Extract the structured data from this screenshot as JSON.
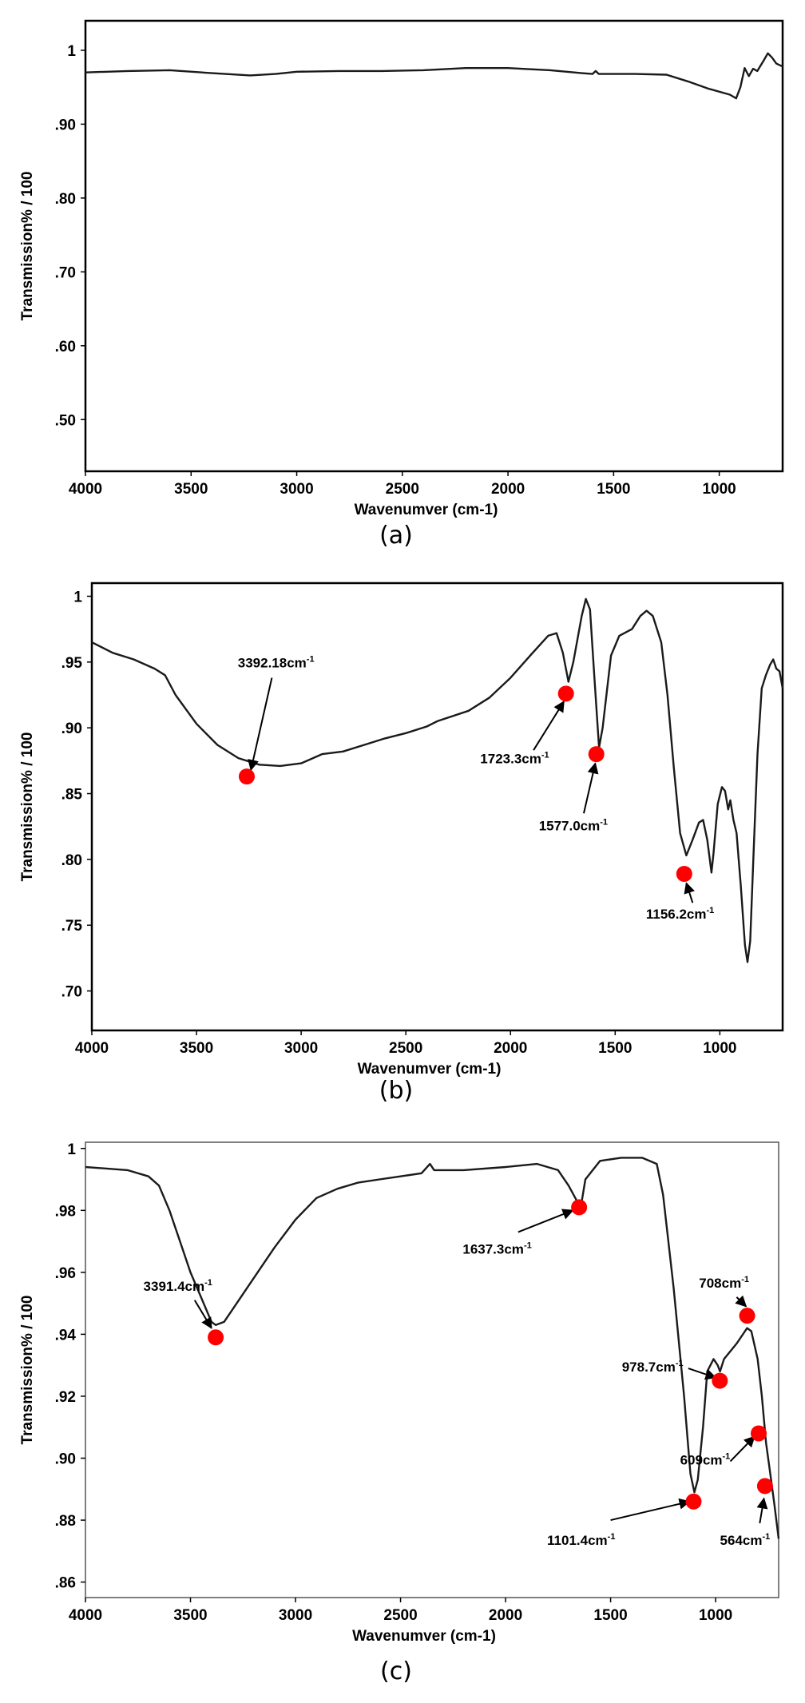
{
  "chart_data": [
    {
      "type": "line",
      "caption": "(a)",
      "xlabel": "Wavenumver (cm-1)",
      "ylabel": "Transmission% / 100",
      "xlim": [
        4000,
        700
      ],
      "ylim": [
        0.43,
        1.04
      ],
      "x_ticks": [
        4000,
        3500,
        3000,
        2500,
        2000,
        1500,
        1000
      ],
      "y_ticks": [
        {
          "value": 1.0,
          "label": "1"
        },
        {
          "value": 0.9,
          "label": ".90"
        },
        {
          "value": 0.8,
          "label": ".80"
        },
        {
          "value": 0.7,
          "label": ".70"
        },
        {
          "value": 0.6,
          "label": ".60"
        },
        {
          "value": 0.5,
          "label": ".50"
        }
      ],
      "grid": false,
      "series": [
        {
          "points": [
            [
              4000,
              0.97
            ],
            [
              3800,
              0.972
            ],
            [
              3600,
              0.973
            ],
            [
              3400,
              0.969
            ],
            [
              3220,
              0.966
            ],
            [
              3100,
              0.968
            ],
            [
              3000,
              0.971
            ],
            [
              2800,
              0.972
            ],
            [
              2600,
              0.972
            ],
            [
              2400,
              0.973
            ],
            [
              2200,
              0.976
            ],
            [
              2000,
              0.976
            ],
            [
              1800,
              0.973
            ],
            [
              1650,
              0.969
            ],
            [
              1600,
              0.968
            ],
            [
              1585,
              0.972
            ],
            [
              1570,
              0.968
            ],
            [
              1400,
              0.968
            ],
            [
              1250,
              0.967
            ],
            [
              1150,
              0.958
            ],
            [
              1050,
              0.948
            ],
            [
              950,
              0.94
            ],
            [
              920,
              0.935
            ],
            [
              900,
              0.95
            ],
            [
              880,
              0.976
            ],
            [
              860,
              0.965
            ],
            [
              840,
              0.975
            ],
            [
              820,
              0.972
            ],
            [
              790,
              0.986
            ],
            [
              770,
              0.996
            ],
            [
              750,
              0.99
            ],
            [
              730,
              0.982
            ],
            [
              700,
              0.978
            ]
          ]
        }
      ],
      "markers": [],
      "annotations": []
    },
    {
      "type": "line",
      "caption": "(b)",
      "xlabel": "Wavenumver (cm-1)",
      "ylabel": "Transmission% / 100",
      "xlim": [
        4000,
        700
      ],
      "ylim": [
        0.67,
        1.01
      ],
      "x_ticks": [
        4000,
        3500,
        3000,
        2500,
        2000,
        1500,
        1000
      ],
      "y_ticks": [
        {
          "value": 1.0,
          "label": "1"
        },
        {
          "value": 0.95,
          "label": ".95"
        },
        {
          "value": 0.9,
          "label": ".90"
        },
        {
          "value": 0.85,
          "label": ".85"
        },
        {
          "value": 0.8,
          "label": ".80"
        },
        {
          "value": 0.75,
          "label": ".75"
        },
        {
          "value": 0.7,
          "label": ".70"
        }
      ],
      "grid": false,
      "series": [
        {
          "points": [
            [
              4000,
              0.965
            ],
            [
              3900,
              0.957
            ],
            [
              3800,
              0.952
            ],
            [
              3700,
              0.945
            ],
            [
              3650,
              0.94
            ],
            [
              3600,
              0.925
            ],
            [
              3500,
              0.903
            ],
            [
              3400,
              0.887
            ],
            [
              3300,
              0.877
            ],
            [
              3200,
              0.872
            ],
            [
              3100,
              0.871
            ],
            [
              3000,
              0.873
            ],
            [
              2900,
              0.88
            ],
            [
              2800,
              0.882
            ],
            [
              2700,
              0.887
            ],
            [
              2600,
              0.892
            ],
            [
              2500,
              0.896
            ],
            [
              2400,
              0.901
            ],
            [
              2350,
              0.905
            ],
            [
              2200,
              0.913
            ],
            [
              2100,
              0.923
            ],
            [
              2000,
              0.938
            ],
            [
              1900,
              0.956
            ],
            [
              1820,
              0.97
            ],
            [
              1780,
              0.972
            ],
            [
              1750,
              0.957
            ],
            [
              1723,
              0.935
            ],
            [
              1700,
              0.95
            ],
            [
              1660,
              0.985
            ],
            [
              1640,
              0.998
            ],
            [
              1620,
              0.99
            ],
            [
              1600,
              0.94
            ],
            [
              1577,
              0.885
            ],
            [
              1560,
              0.9
            ],
            [
              1520,
              0.955
            ],
            [
              1480,
              0.97
            ],
            [
              1420,
              0.975
            ],
            [
              1380,
              0.985
            ],
            [
              1350,
              0.989
            ],
            [
              1320,
              0.985
            ],
            [
              1280,
              0.965
            ],
            [
              1250,
              0.925
            ],
            [
              1220,
              0.87
            ],
            [
              1190,
              0.82
            ],
            [
              1160,
              0.803
            ],
            [
              1130,
              0.815
            ],
            [
              1100,
              0.828
            ],
            [
              1080,
              0.83
            ],
            [
              1060,
              0.815
            ],
            [
              1040,
              0.79
            ],
            [
              1030,
              0.805
            ],
            [
              1010,
              0.842
            ],
            [
              990,
              0.855
            ],
            [
              975,
              0.852
            ],
            [
              960,
              0.838
            ],
            [
              950,
              0.845
            ],
            [
              935,
              0.83
            ],
            [
              920,
              0.82
            ],
            [
              900,
              0.78
            ],
            [
              880,
              0.735
            ],
            [
              868,
              0.722
            ],
            [
              855,
              0.738
            ],
            [
              840,
              0.8
            ],
            [
              820,
              0.88
            ],
            [
              800,
              0.93
            ],
            [
              780,
              0.94
            ],
            [
              760,
              0.948
            ],
            [
              745,
              0.952
            ],
            [
              730,
              0.945
            ],
            [
              715,
              0.943
            ],
            [
              700,
              0.93
            ]
          ]
        }
      ],
      "markers": [
        {
          "x": 3260,
          "y": 0.863
        },
        {
          "x": 1735,
          "y": 0.926
        },
        {
          "x": 1590,
          "y": 0.88
        },
        {
          "x": 1170,
          "y": 0.789
        }
      ],
      "annotations": [
        {
          "text": "3392.18cm",
          "sup": "-1",
          "x": 3120,
          "y": 0.946,
          "arrow_from": [
            3140,
            0.938
          ],
          "arrow_to": [
            3240,
            0.868
          ]
        },
        {
          "text": "1723.3cm",
          "sup": "-1",
          "x": 1980,
          "y": 0.873,
          "arrow_from": [
            1890,
            0.883
          ],
          "arrow_to": [
            1745,
            0.92
          ]
        },
        {
          "text": "1577.0cm",
          "sup": "-1",
          "x": 1700,
          "y": 0.822,
          "arrow_from": [
            1650,
            0.835
          ],
          "arrow_to": [
            1595,
            0.873
          ]
        },
        {
          "text": "1156.2cm",
          "sup": "-1",
          "x": 1190,
          "y": 0.755,
          "arrow_from": [
            1130,
            0.767
          ],
          "arrow_to": [
            1160,
            0.782
          ]
        }
      ]
    },
    {
      "type": "line",
      "caption": "(c)",
      "xlabel": "Wavenumver (cm-1)",
      "ylabel": "Transmission% / 100",
      "xlim": [
        4000,
        700
      ],
      "ylim": [
        0.855,
        1.002
      ],
      "x_ticks": [
        4000,
        3500,
        3000,
        2500,
        2000,
        1500,
        1000
      ],
      "y_ticks": [
        {
          "value": 1.0,
          "label": "1"
        },
        {
          "value": 0.98,
          "label": ".98"
        },
        {
          "value": 0.96,
          "label": ".96"
        },
        {
          "value": 0.94,
          "label": ".94"
        },
        {
          "value": 0.92,
          "label": ".92"
        },
        {
          "value": 0.9,
          "label": ".90"
        },
        {
          "value": 0.88,
          "label": ".88"
        },
        {
          "value": 0.86,
          "label": ".86"
        }
      ],
      "grid": false,
      "series": [
        {
          "points": [
            [
              4000,
              0.994
            ],
            [
              3800,
              0.993
            ],
            [
              3700,
              0.991
            ],
            [
              3650,
              0.988
            ],
            [
              3600,
              0.98
            ],
            [
              3550,
              0.97
            ],
            [
              3500,
              0.96
            ],
            [
              3450,
              0.952
            ],
            [
              3400,
              0.944
            ],
            [
              3380,
              0.943
            ],
            [
              3340,
              0.944
            ],
            [
              3300,
              0.948
            ],
            [
              3200,
              0.958
            ],
            [
              3100,
              0.968
            ],
            [
              3000,
              0.977
            ],
            [
              2900,
              0.984
            ],
            [
              2800,
              0.987
            ],
            [
              2700,
              0.989
            ],
            [
              2600,
              0.99
            ],
            [
              2500,
              0.991
            ],
            [
              2400,
              0.992
            ],
            [
              2360,
              0.995
            ],
            [
              2340,
              0.993
            ],
            [
              2200,
              0.993
            ],
            [
              2000,
              0.994
            ],
            [
              1850,
              0.995
            ],
            [
              1750,
              0.993
            ],
            [
              1700,
              0.988
            ],
            [
              1660,
              0.983
            ],
            [
              1637,
              0.983
            ],
            [
              1620,
              0.99
            ],
            [
              1550,
              0.996
            ],
            [
              1450,
              0.997
            ],
            [
              1350,
              0.997
            ],
            [
              1280,
              0.995
            ],
            [
              1250,
              0.985
            ],
            [
              1200,
              0.955
            ],
            [
              1150,
              0.92
            ],
            [
              1120,
              0.895
            ],
            [
              1101,
              0.889
            ],
            [
              1085,
              0.893
            ],
            [
              1060,
              0.91
            ],
            [
              1040,
              0.928
            ],
            [
              1010,
              0.932
            ],
            [
              990,
              0.93
            ],
            [
              979,
              0.928
            ],
            [
              960,
              0.932
            ],
            [
              900,
              0.937
            ],
            [
              850,
              0.942
            ],
            [
              830,
              0.941
            ],
            [
              800,
              0.932
            ],
            [
              780,
              0.92
            ],
            [
              760,
              0.905
            ],
            [
              740,
              0.895
            ],
            [
              720,
              0.885
            ],
            [
              700,
              0.874
            ]
          ]
        }
      ],
      "markers": [
        {
          "x": 3380,
          "y": 0.939
        },
        {
          "x": 1650,
          "y": 0.981
        },
        {
          "x": 850,
          "y": 0.946
        },
        {
          "x": 980,
          "y": 0.925
        },
        {
          "x": 795,
          "y": 0.908
        },
        {
          "x": 1105,
          "y": 0.886
        },
        {
          "x": 765,
          "y": 0.891
        }
      ],
      "annotations": [
        {
          "text": "3391.4cm",
          "sup": "-1",
          "x": 3560,
          "y": 0.954,
          "arrow_from": [
            3480,
            0.951
          ],
          "arrow_to": [
            3400,
            0.942
          ]
        },
        {
          "text": "1637.3cm",
          "sup": "-1",
          "x": 2040,
          "y": 0.966,
          "arrow_from": [
            1940,
            0.973
          ],
          "arrow_to": [
            1680,
            0.98
          ]
        },
        {
          "text": "708cm",
          "sup": "-1",
          "x": 960,
          "y": 0.955,
          "arrow_from": [
            900,
            0.952
          ],
          "arrow_to": [
            855,
            0.949
          ]
        },
        {
          "text": "978.7cm",
          "sup": "-1",
          "x": 1300,
          "y": 0.928,
          "arrow_from": [
            1130,
            0.929
          ],
          "arrow_to": [
            1000,
            0.926
          ]
        },
        {
          "text": "609cm",
          "sup": "-1",
          "x": 1050,
          "y": 0.898,
          "arrow_from": [
            930,
            0.899
          ],
          "arrow_to": [
            815,
            0.907
          ]
        },
        {
          "text": "1101.4cm",
          "sup": "-1",
          "x": 1640,
          "y": 0.872,
          "arrow_from": [
            1500,
            0.88
          ],
          "arrow_to": [
            1125,
            0.886
          ]
        },
        {
          "text": "564cm",
          "sup": "-1",
          "x": 860,
          "y": 0.872,
          "arrow_from": [
            790,
            0.879
          ],
          "arrow_to": [
            770,
            0.887
          ]
        }
      ]
    }
  ]
}
